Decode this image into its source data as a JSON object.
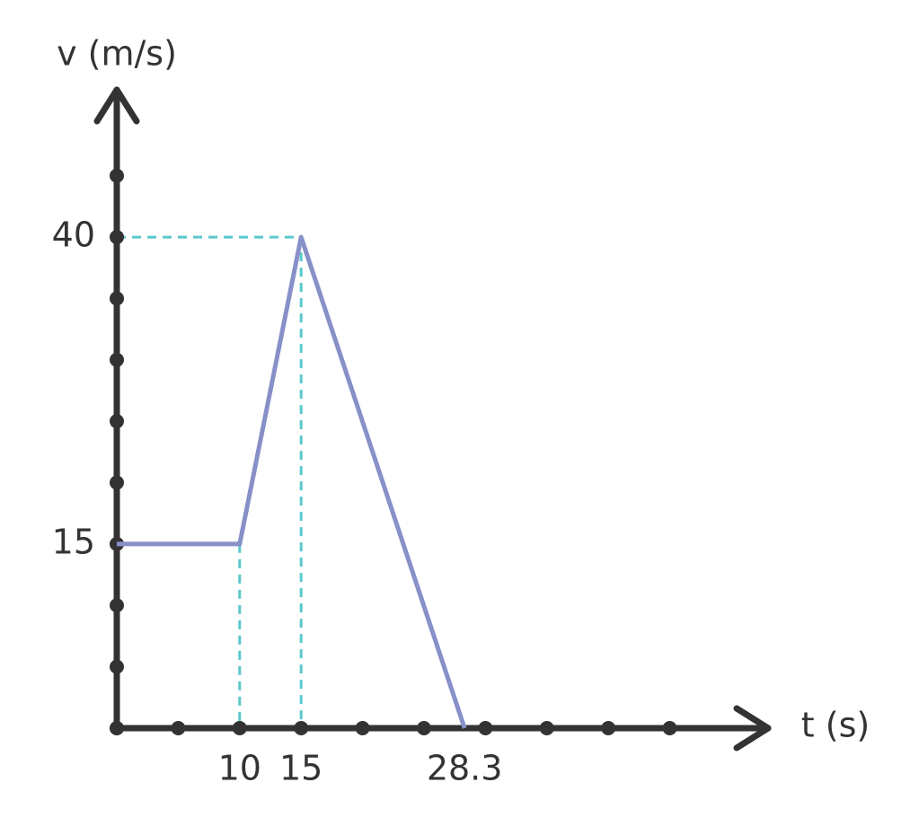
{
  "chart_data": {
    "type": "line",
    "x_label": "t (s)",
    "y_label": "v (m/s)",
    "x": [
      0,
      10,
      15,
      28.3
    ],
    "series": [
      {
        "color": "#8890c8",
        "values": [
          15,
          15,
          40,
          0
        ]
      }
    ],
    "xlim": [
      0,
      53
    ],
    "ylim": [
      0,
      52
    ],
    "xticks": [
      10,
      15,
      28.3
    ],
    "yticks": [
      15,
      40
    ],
    "xminor": [
      0,
      5,
      10,
      15,
      20,
      25,
      30,
      35,
      40,
      45
    ],
    "yminor": [
      0,
      5,
      10,
      15,
      20,
      25,
      30,
      35,
      40,
      45
    ],
    "axis_color": "#333333",
    "guide_color": "#5bc8cc"
  }
}
